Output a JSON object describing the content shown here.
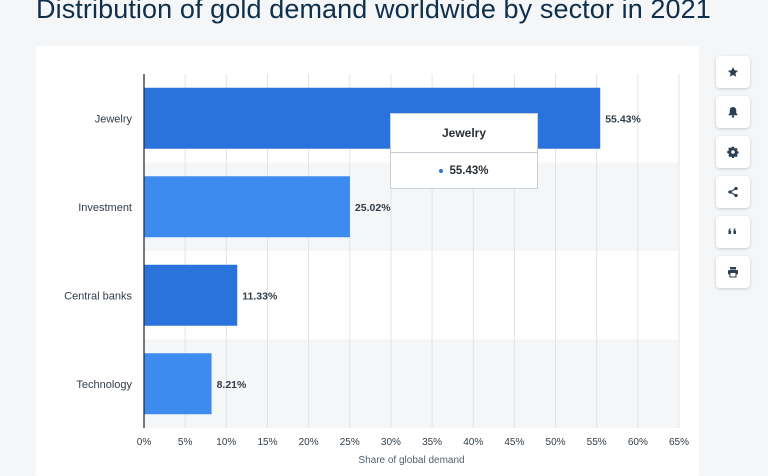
{
  "page": {
    "title": "Distribution of gold demand worldwide by sector in 2021"
  },
  "colors": {
    "bar_dark": "#2b73dc",
    "bar_light": "#3d8bef",
    "band": "#f5f6f7",
    "grid": "#e1e4e8",
    "text": "#333d47"
  },
  "tooltip": {
    "title": "Jewelry",
    "value_text": "55.43%"
  },
  "toolbar": [
    {
      "name": "favorite",
      "icon": "star-icon"
    },
    {
      "name": "notification",
      "icon": "bell-icon"
    },
    {
      "name": "settings",
      "icon": "gear-icon"
    },
    {
      "name": "share",
      "icon": "share-icon"
    },
    {
      "name": "cite",
      "icon": "quote-icon"
    },
    {
      "name": "print",
      "icon": "print-icon"
    }
  ],
  "chart_data": {
    "type": "bar",
    "orientation": "horizontal",
    "title": "Distribution of gold demand worldwide by sector in 2021",
    "categories": [
      "Jewelry",
      "Investment",
      "Central banks",
      "Technology"
    ],
    "values": [
      55.43,
      25.02,
      11.33,
      8.21
    ],
    "value_labels": [
      "55.43%",
      "25.02%",
      "11.33%",
      "8.21%"
    ],
    "xlabel": "Share of global demand",
    "ylabel": "",
    "xlim": [
      0,
      65
    ],
    "x_ticks": [
      0,
      5,
      10,
      15,
      20,
      25,
      30,
      35,
      40,
      45,
      50,
      55,
      60,
      65
    ],
    "x_tick_labels": [
      "0%",
      "5%",
      "10%",
      "15%",
      "20%",
      "25%",
      "30%",
      "35%",
      "40%",
      "45%",
      "50%",
      "55%",
      "60%",
      "65%"
    ],
    "grid": true,
    "legend": "none"
  }
}
